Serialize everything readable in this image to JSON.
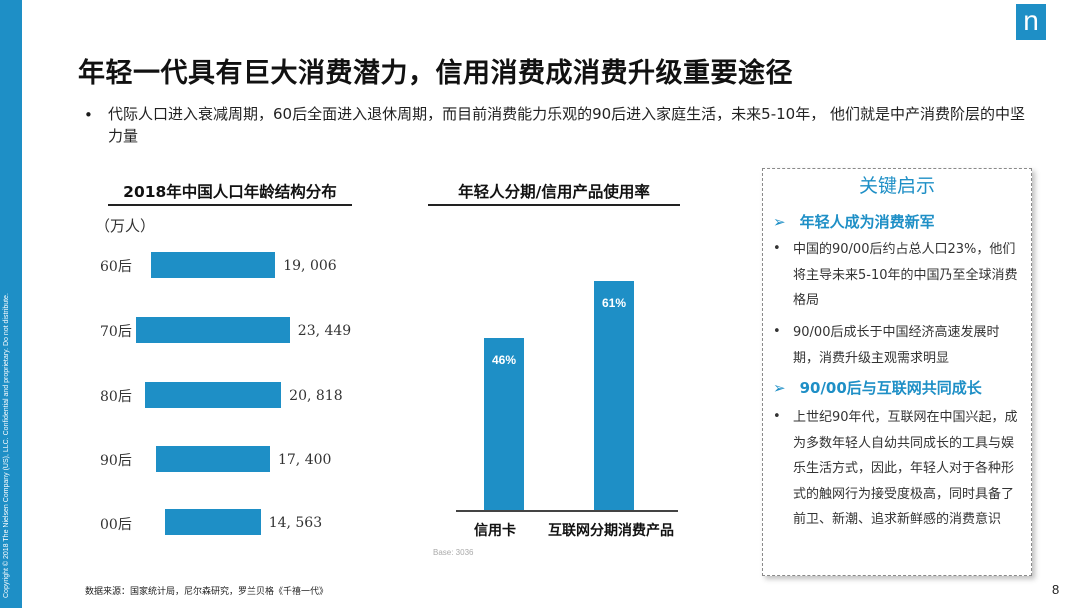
{
  "copyright": "Copyright © 2018 The Nielsen Company (US), LLC. Confidential and proprietary. Do not distribute.",
  "logo": "n",
  "title": "年轻一代具有巨大消费潜力，信用消费成消费升级重要途径",
  "intro": {
    "bullet": "•",
    "text": "代际人口进入衰减周期，60后全面进入退休周期，而目前消费能力乐观的90后进入家庭生活，未来5-10年， 他们就是中产消费阶层的中坚力量"
  },
  "colors": {
    "accent": "#1e8fc6"
  },
  "population_title": "2018年中国人口年龄结构分布",
  "population_unit": "（万人）",
  "usage_title": "年轻人分期/信用产品使用率",
  "base_note": "Base:    3036",
  "chart_data": [
    {
      "type": "bar",
      "orientation": "horizontal",
      "title": "2018年中国人口年龄结构分布",
      "unit": "（万人）",
      "categories": [
        "60后",
        "70后",
        "80后",
        "90后",
        "00后"
      ],
      "values": [
        19006,
        23449,
        20818,
        17400,
        14563
      ],
      "value_labels": [
        "19, 006",
        "23, 449",
        "20, 818",
        "17, 400",
        "14, 563"
      ]
    },
    {
      "type": "bar",
      "orientation": "vertical",
      "title": "年轻人分期/信用产品使用率",
      "categories": [
        "信用卡",
        "互联网分期消费产品"
      ],
      "values": [
        46,
        61
      ],
      "value_labels": [
        "46%",
        "61%"
      ],
      "ylim": [
        0,
        100
      ]
    }
  ],
  "insight": {
    "title": "关键启示",
    "arrow": "➢",
    "dot": "•",
    "heading1": "年轻人成为消费新军",
    "bullet1": "中国的90/00后约占总人口23%，他们将主导未来5-10年的中国乃至全球消费格局",
    "bullet2": "90/00后成长于中国经济高速发展时期，消费升级主观需求明显",
    "heading2": "90/00后与互联网共同成长",
    "bullet3": "上世纪90年代，互联网在中国兴起，成为多数年轻人自幼共同成长的工具与娱乐生活方式，因此，年轻人对于各种形式的触网行为接受度极高，同时具备了前卫、新潮、追求新鲜感的消费意识"
  },
  "source": "数据来源：国家统计局，尼尔森研究，罗兰贝格《千禧一代》",
  "page_number": "8"
}
